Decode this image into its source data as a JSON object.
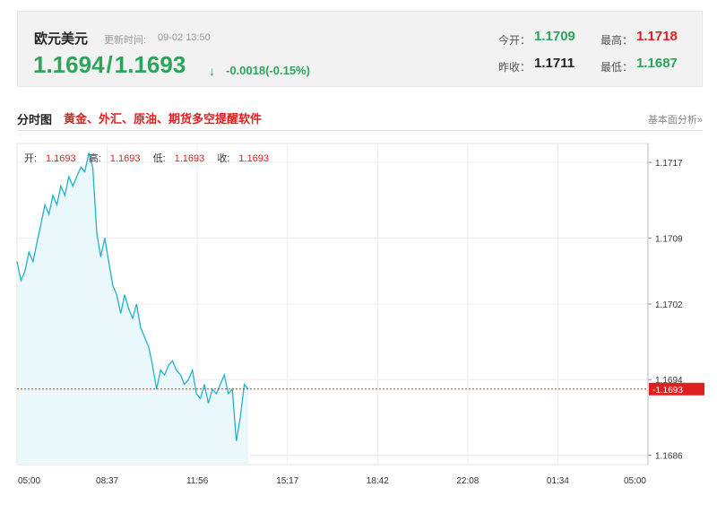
{
  "header": {
    "pair_name": "欧元美元",
    "update_label": "更新时间:",
    "update_time": "09-02 13:50",
    "bid": "1.1694",
    "ask": "1.1693",
    "arrow": "↓",
    "change": "-0.0018(-0.15%)",
    "open_label": "今开：",
    "open_value": "1.1709",
    "high_label": "最高：",
    "high_value": "1.1718",
    "prev_close_label": "昨收：",
    "prev_close_value": "1.1711",
    "low_label": "最低：",
    "low_value": "1.1687"
  },
  "section": {
    "title": "分时图",
    "promo_link": "黄金、外汇、原油、期货多空提醒软件",
    "analysis_link": "基本面分析»"
  },
  "colors": {
    "up": "#e02020",
    "down": "#2aa55a",
    "line": "#1fb3c9",
    "area": "#eaf8fb",
    "current_price": "#e02020"
  },
  "chart_data": {
    "type": "area",
    "ohlc_label": {
      "open_label": "开:",
      "open": "1.1693",
      "high_label": "高:",
      "high": "1.1693",
      "low_label": "低:",
      "low": "1.1693",
      "close_label": "收:",
      "close": "1.1693"
    },
    "x_ticks": [
      "05:00",
      "08:37",
      "11:56",
      "15:17",
      "18:42",
      "22:08",
      "01:34",
      "05:00"
    ],
    "y_ticks": [
      "1.1717",
      "1.1709",
      "1.1702",
      "1.1694",
      "1.1686"
    ],
    "ylim": [
      1.1685,
      1.1719
    ],
    "current_price": 1.1693,
    "current_price_label": "1.1693",
    "series": [
      {
        "values": [
          1.17065,
          1.17045,
          1.17055,
          1.17075,
          1.17065,
          1.17085,
          1.17105,
          1.17125,
          1.17115,
          1.17135,
          1.17125,
          1.17145,
          1.17135,
          1.17155,
          1.17145,
          1.17155,
          1.17165,
          1.1716,
          1.1718,
          1.17165,
          1.17095,
          1.1707,
          1.1709,
          1.17065,
          1.1704,
          1.1703,
          1.1701,
          1.1703,
          1.17015,
          1.17005,
          1.1702,
          1.16995,
          1.16985,
          1.16975,
          1.16955,
          1.1693,
          1.1695,
          1.16945,
          1.16955,
          1.1696,
          1.1695,
          1.16945,
          1.16935,
          1.1694,
          1.1695,
          1.16925,
          1.1692,
          1.16935,
          1.16915,
          1.1693,
          1.16925,
          1.16935,
          1.16945,
          1.16925,
          1.1693,
          1.16875,
          1.169,
          1.16935,
          1.1693
        ]
      }
    ]
  }
}
